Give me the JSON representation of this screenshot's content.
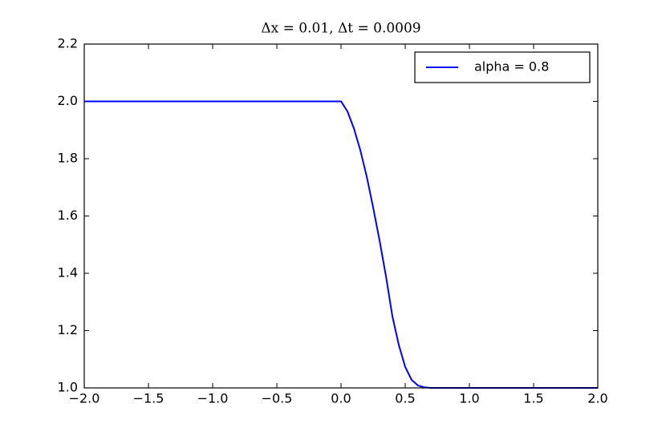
{
  "chart_data": {
    "type": "line",
    "title": "Δx = 0.01, Δt = 0.0009",
    "x": [
      -2.0,
      0.0,
      0.05,
      0.1,
      0.15,
      0.2,
      0.25,
      0.3,
      0.35,
      0.4,
      0.45,
      0.5,
      0.55,
      0.6,
      0.65,
      0.7,
      2.0
    ],
    "series": [
      {
        "name": "alpha = 0.8",
        "color": "#0000ff",
        "values": [
          2.0,
          2.0,
          1.965,
          1.906,
          1.83,
          1.738,
          1.63,
          1.515,
          1.39,
          1.25,
          1.15,
          1.073,
          1.028,
          1.008,
          1.002,
          1.0,
          1.0
        ]
      }
    ],
    "xlim": [
      -2.0,
      2.0
    ],
    "xticks": [
      {
        "value": -2.0,
        "label": "−2.0"
      },
      {
        "value": -1.5,
        "label": "−1.5"
      },
      {
        "value": -1.0,
        "label": "−1.0"
      },
      {
        "value": -0.5,
        "label": "−0.5"
      },
      {
        "value": 0.0,
        "label": "0.0"
      },
      0.5,
      {
        "value": 1.0,
        "label": "1.0"
      },
      1.5,
      {
        "value": 2.0,
        "label": "2.0"
      }
    ],
    "ylim": [
      1.0,
      2.2
    ],
    "yticks": [
      {
        "value": 1.0,
        "label": "1.0"
      },
      1.2,
      1.4,
      1.6,
      1.8,
      {
        "value": 2.0,
        "label": "2.0"
      },
      2.2
    ],
    "legend": "upper right"
  }
}
